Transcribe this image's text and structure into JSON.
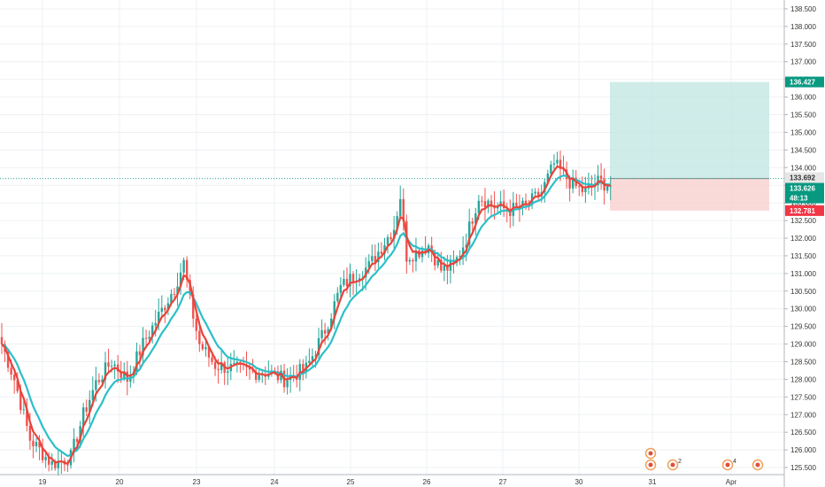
{
  "colors": {
    "background": "#ffffff",
    "grid": "#eef1f4",
    "axis_line": "#b2b5be",
    "up_candle": "#26a69a",
    "down_candle": "#ef5350",
    "ma_fast": "#e8443a",
    "ma_slow": "#2bbfc8",
    "profit_zone": "#bfe6e1",
    "loss_zone": "#f8cdcb",
    "target_badge": "#089981",
    "current_badge": "#089981",
    "stop_badge": "#f23645",
    "entry_badge": "#e6e6e6"
  },
  "chart_data": {
    "type": "candlestick",
    "instrument": "",
    "grid": true,
    "y_axis": {
      "position": "right",
      "range": [
        125.3,
        138.75
      ],
      "ticks": [
        "125.500",
        "126.000",
        "126.500",
        "127.000",
        "127.500",
        "128.000",
        "128.500",
        "129.000",
        "129.500",
        "130.000",
        "130.500",
        "131.000",
        "131.500",
        "132.000",
        "132.500",
        "133.000",
        "133.500",
        "134.000",
        "134.500",
        "135.000",
        "135.500",
        "136.000",
        "136.500",
        "137.000",
        "137.500",
        "138.000",
        "138.500"
      ]
    },
    "x_axis": {
      "labels": [
        "19",
        "20",
        "23",
        "24",
        "25",
        "26",
        "27",
        "30",
        "31",
        "Apr"
      ]
    },
    "price_badges": {
      "target": "136.427",
      "entry": "133.692",
      "current": "133.626",
      "countdown": "48:13",
      "stop": "132.781"
    },
    "position_tool": {
      "type": "long",
      "entry": 133.692,
      "target": 136.427,
      "stop": 132.781
    },
    "moving_averages": [
      {
        "period_label": "",
        "color": "ma_fast"
      },
      {
        "period_label": "",
        "color": "ma_slow"
      }
    ],
    "anchors": [
      [
        0,
        129.0
      ],
      [
        4,
        128.0
      ],
      [
        9,
        126.3
      ],
      [
        16,
        125.6
      ],
      [
        22,
        125.8
      ],
      [
        26,
        127.0
      ],
      [
        30,
        127.9
      ],
      [
        35,
        128.5
      ],
      [
        40,
        128.0
      ],
      [
        45,
        129.0
      ],
      [
        50,
        129.8
      ],
      [
        55,
        130.6
      ],
      [
        58,
        131.3
      ],
      [
        60,
        130.2
      ],
      [
        63,
        129.0
      ],
      [
        68,
        128.4
      ],
      [
        74,
        128.3
      ],
      [
        80,
        128.2
      ],
      [
        85,
        128.2
      ],
      [
        90,
        128.0
      ],
      [
        97,
        128.3
      ],
      [
        103,
        129.4
      ],
      [
        108,
        130.6
      ],
      [
        113,
        131.0
      ],
      [
        117,
        131.2
      ],
      [
        122,
        131.9
      ],
      [
        125,
        132.3
      ],
      [
        127,
        133.2
      ],
      [
        129,
        131.5
      ],
      [
        132,
        131.6
      ],
      [
        136,
        131.8
      ],
      [
        140,
        131.1
      ],
      [
        144,
        131.2
      ],
      [
        148,
        132.0
      ],
      [
        152,
        133.2
      ],
      [
        157,
        132.9
      ],
      [
        162,
        132.8
      ],
      [
        167,
        132.9
      ],
      [
        172,
        133.3
      ],
      [
        176,
        134.1
      ],
      [
        179,
        133.8
      ],
      [
        182,
        133.5
      ],
      [
        186,
        133.3
      ],
      [
        190,
        133.6
      ],
      [
        194,
        133.5
      ]
    ],
    "events": [
      {
        "label": "",
        "day_index": 8,
        "row": "top"
      },
      {
        "label": "",
        "day_index": 8,
        "row": "bottom"
      },
      {
        "label": "2",
        "day_index": 8,
        "row": "bottom-right"
      },
      {
        "label": "4",
        "day_index": 9,
        "row": "bottom"
      },
      {
        "label": "",
        "day_index": 9,
        "row": "bottom-right"
      }
    ]
  }
}
